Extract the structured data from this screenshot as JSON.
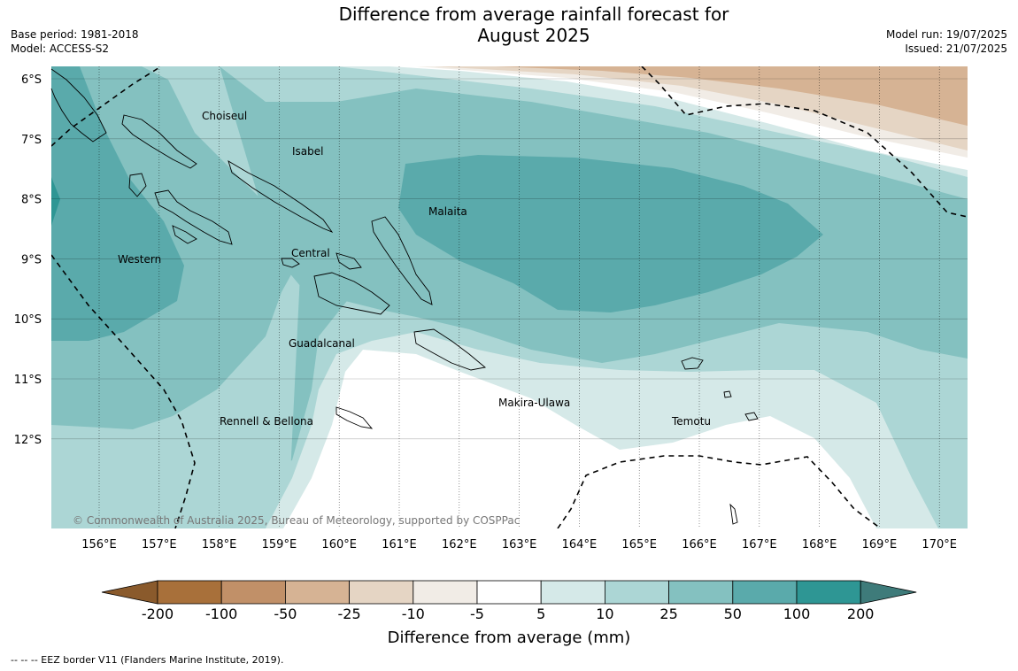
{
  "title_line1": "Difference from average rainfall forecast for",
  "title_line2": "August 2025",
  "meta": {
    "base_period": "Base period: 1981-2018",
    "model": "Model: ACCESS-S2",
    "model_run": "Model run: 19/07/2025",
    "issued": "Issued: 21/07/2025"
  },
  "lat_ticks": [
    "6°S",
    "7°S",
    "8°S",
    "9°S",
    "10°S",
    "11°S",
    "12°S"
  ],
  "lon_ticks": [
    "156°E",
    "157°E",
    "158°E",
    "159°E",
    "160°E",
    "161°E",
    "162°E",
    "163°E",
    "164°E",
    "165°E",
    "166°E",
    "167°E",
    "168°E",
    "169°E",
    "170°E"
  ],
  "regions": [
    "Choiseul",
    "Isabel",
    "Malaita",
    "Western",
    "Central",
    "Guadalcanal",
    "Makira-Ulawa",
    "Rennell & Bellona",
    "Temotu"
  ],
  "copyright": "© Commonwealth of Australia 2025, Bureau of Meteorology, supported by COSPPac",
  "colorbar": {
    "labels": [
      "-200",
      "-100",
      "-50",
      "-25",
      "-10",
      "-5",
      "5",
      "10",
      "25",
      "50",
      "100",
      "200"
    ],
    "colors": [
      "#a8703a",
      "#c19068",
      "#d6b394",
      "#e5d5c4",
      "#f1ece6",
      "#ffffff",
      "#d5e9e8",
      "#acd6d5",
      "#84c1c0",
      "#5aaaab",
      "#2e9694"
    ],
    "extend_low": "#8a5a2c",
    "extend_high": "#3e7b7a",
    "title": "Difference from average (mm)"
  },
  "footnote": "--  --  -- EEZ border V11 (Flanders Marine Institute, 2019)."
}
